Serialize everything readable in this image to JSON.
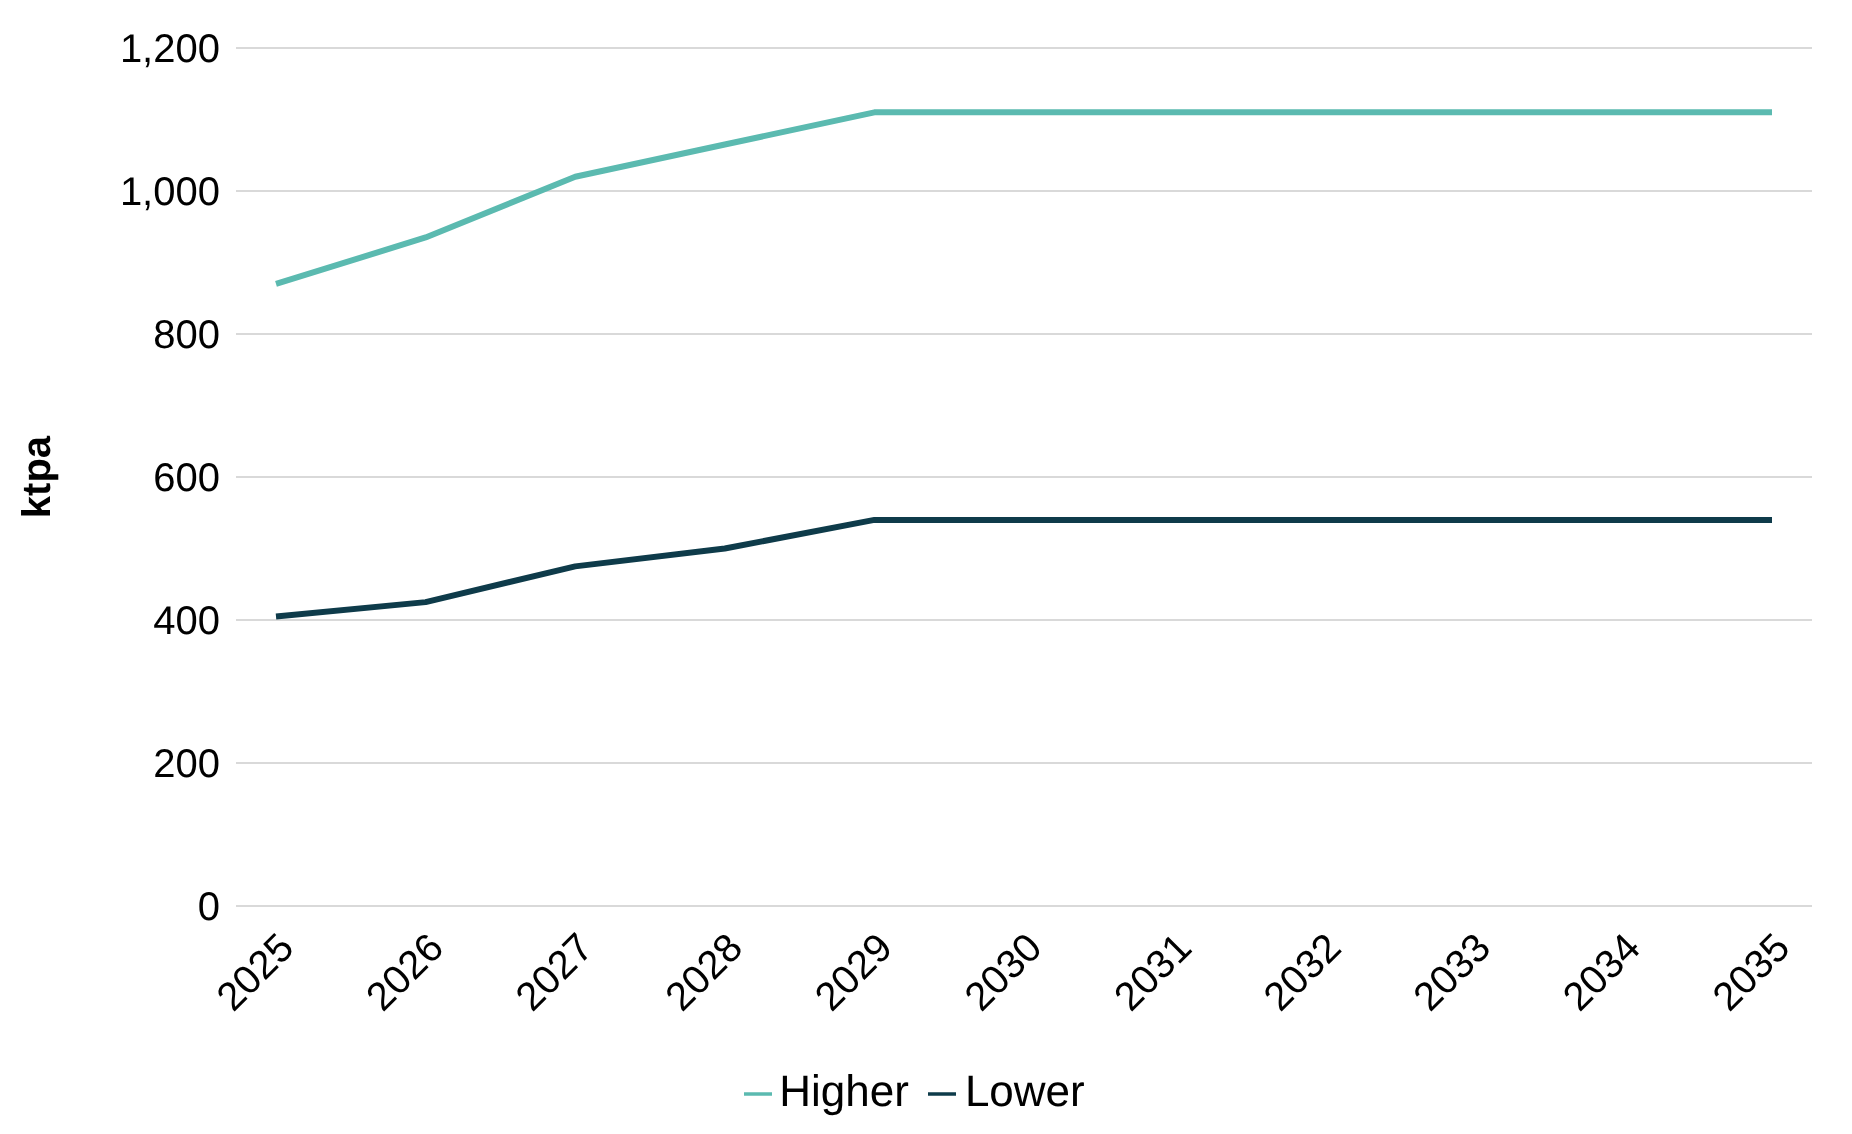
{
  "chart_data": {
    "type": "line",
    "ylabel": "ktpa",
    "categories": [
      "2025",
      "2026",
      "2027",
      "2028",
      "2029",
      "2030",
      "2031",
      "2032",
      "2033",
      "2034",
      "2035"
    ],
    "series": [
      {
        "name": "Higher",
        "color": "#5bbab0",
        "values": [
          870,
          935,
          1020,
          1065,
          1110,
          1110,
          1110,
          1110,
          1110,
          1110,
          1110
        ]
      },
      {
        "name": "Lower",
        "color": "#0e3b4a",
        "values": [
          405,
          425,
          475,
          500,
          540,
          540,
          540,
          540,
          540,
          540,
          540
        ]
      }
    ],
    "ylim": [
      0,
      1200
    ],
    "yticks": [
      0,
      200,
      400,
      600,
      800,
      {
        "value": 1000,
        "label": "1,000"
      },
      {
        "value": 1200,
        "label": "1,200"
      }
    ],
    "grid": "y",
    "legend": "bottom",
    "marker": "none",
    "line_style": "solid"
  }
}
